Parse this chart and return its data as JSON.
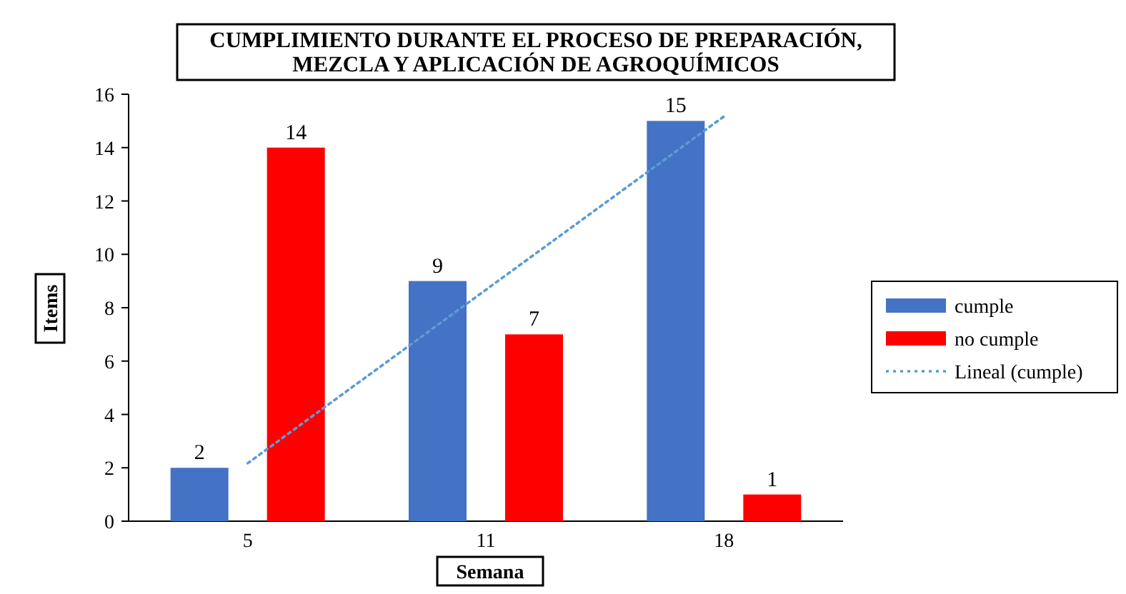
{
  "chart_data": {
    "type": "bar",
    "title": "CUMPLIMIENTO DURANTE EL PROCESO DE PREPARACIÓN, MEZCLA Y APLICACIÓN DE AGROQUÍMICOS",
    "xlabel": "Semana",
    "ylabel": "Items",
    "categories": [
      "5",
      "11",
      "18"
    ],
    "series": [
      {
        "name": "cumple",
        "color": "#4472c4",
        "values": [
          2,
          9,
          15
        ],
        "value_labels": [
          "2",
          "9",
          "15"
        ]
      },
      {
        "name": "no cumple",
        "color": "#ff0000",
        "values": [
          14,
          7,
          1
        ],
        "value_labels": [
          "14",
          "7",
          "1"
        ]
      },
      {
        "name": "Lineal (cumple)",
        "type": "line",
        "color": "#5b9bd5",
        "line_style": "dotted",
        "values": [
          2.17,
          8.67,
          15.17
        ]
      }
    ],
    "ylim": [
      0,
      16
    ],
    "yticks": [
      0,
      2,
      4,
      6,
      8,
      10,
      12,
      14,
      16
    ],
    "legend": "right",
    "grid": false
  }
}
